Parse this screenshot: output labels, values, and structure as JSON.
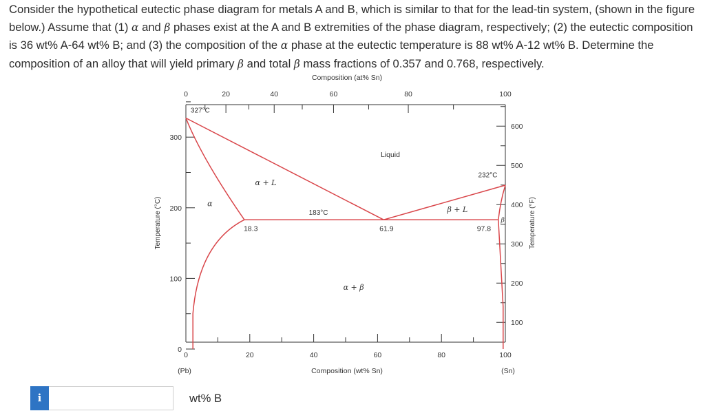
{
  "question": {
    "segments": [
      {
        "t": "Consider the hypothetical eutectic phase diagram for metals A and B, which is similar to that for the lead-tin system, (shown in the figure below.) Assume that (1) ",
        "g": false
      },
      {
        "t": "α",
        "g": true
      },
      {
        "t": " and ",
        "g": false
      },
      {
        "t": "β",
        "g": true
      },
      {
        "t": " phases exist at the A and B extremities of the phase diagram, respectively; (2) the eutectic composition is 36 wt% A-64 wt% B; and (3) the composition of the ",
        "g": false
      },
      {
        "t": "α",
        "g": true
      },
      {
        "t": " phase at the eutectic temperature is 88 wt% A-12 wt% B. Determine the composition of an alloy that will yield primary ",
        "g": false
      },
      {
        "t": "β",
        "g": true
      },
      {
        "t": " and total ",
        "g": false
      },
      {
        "t": "β",
        "g": true
      },
      {
        "t": " mass fractions of 0.357 and 0.768, respectively.",
        "g": false
      }
    ]
  },
  "diagram": {
    "top_axis_title": "Composition (at% Sn)",
    "top_ticks": [
      "0",
      "20",
      "40",
      "60",
      "80",
      "100"
    ],
    "bottom_axis_title": "Composition (wt% Sn)",
    "bottom_ticks": [
      "0",
      "20",
      "40",
      "60",
      "80",
      "100"
    ],
    "left_axis_title": "Temperature (°C)",
    "left_ticks": [
      "0",
      "100",
      "200",
      "300"
    ],
    "right_axis_title": "Temperature (°F)",
    "right_ticks": [
      "100",
      "200",
      "300",
      "400",
      "500",
      "600"
    ],
    "bottom_left_label": "(Pb)",
    "bottom_right_label": "(Sn)",
    "phase_labels": {
      "liquid": "Liquid",
      "alpha_l": "α + L",
      "alpha": "α",
      "beta_l": "β + L",
      "beta": "β",
      "alpha_beta": "α + β"
    },
    "point_labels": {
      "pb_melt": "327°C",
      "sn_melt": "232°C",
      "eutectic_temp": "183°C",
      "alpha_comp": "18.3",
      "eutectic_comp": "61.9",
      "beta_comp": "97.8"
    },
    "line_color": "#d9464a",
    "axis_color": "#333333"
  },
  "answer": {
    "info_icon": "i",
    "input_value": "",
    "unit": "wt% B"
  }
}
